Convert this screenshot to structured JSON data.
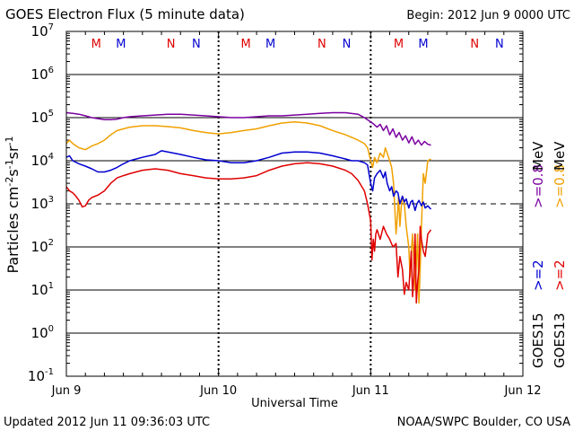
{
  "chart_data": {
    "type": "line",
    "title": "GOES Electron Flux (5 minute data)",
    "begin_label": "Begin: 2012 Jun 9 0000 UTC",
    "xlabel": "Universal Time",
    "ylabel": "Particles cm⁻²s⁻¹sr⁻¹",
    "ylabel_parts": {
      "base": "Particles cm",
      "e1": "-2",
      "mid1": "s",
      "e2": "-1",
      "mid2": "sr",
      "e3": "-1"
    },
    "x_unit": "hours since 2012 Jun 9 00:00 UTC",
    "xlim": [
      0,
      72
    ],
    "x_ticks": [
      {
        "h": 0,
        "label": "Jun 9"
      },
      {
        "h": 24,
        "label": "Jun 10"
      },
      {
        "h": 48,
        "label": "Jun 11"
      },
      {
        "h": 72,
        "label": "Jun 12"
      }
    ],
    "yscale": "log",
    "ylim_exp": [
      -1,
      7
    ],
    "y_ticks": [
      {
        "exp": 7,
        "base": "10",
        "sup": "7"
      },
      {
        "exp": 6,
        "base": "10",
        "sup": "6"
      },
      {
        "exp": 5,
        "base": "10",
        "sup": "5"
      },
      {
        "exp": 4,
        "base": "10",
        "sup": "4"
      },
      {
        "exp": 3,
        "base": "10",
        "sup": "3"
      },
      {
        "exp": 2,
        "base": "10",
        "sup": "2"
      },
      {
        "exp": 1,
        "base": "10",
        "sup": "1"
      },
      {
        "exp": 0,
        "base": "10",
        "sup": "0"
      },
      {
        "exp": -1,
        "base": "10",
        "sup": "-1"
      }
    ],
    "dashed_threshold_exp": 3,
    "markers": [
      {
        "h": 4.7,
        "label": "M",
        "color": "#e00000"
      },
      {
        "h": 8.6,
        "label": "M",
        "color": "#0000d0"
      },
      {
        "h": 16.5,
        "label": "N",
        "color": "#e00000"
      },
      {
        "h": 20.5,
        "label": "N",
        "color": "#0000d0"
      },
      {
        "h": 28.3,
        "label": "M",
        "color": "#e00000"
      },
      {
        "h": 32.2,
        "label": "M",
        "color": "#0000d0"
      },
      {
        "h": 40.3,
        "label": "N",
        "color": "#e00000"
      },
      {
        "h": 44.2,
        "label": "N",
        "color": "#0000d0"
      },
      {
        "h": 52.4,
        "label": "M",
        "color": "#e00000"
      },
      {
        "h": 56.3,
        "label": "M",
        "color": "#0000d0"
      },
      {
        "h": 64.4,
        "label": "N",
        "color": "#e00000"
      },
      {
        "h": 68.3,
        "label": "N",
        "color": "#0000d0"
      }
    ],
    "legend_placement": "right",
    "legend": [
      {
        "sat": "GOES15",
        "label": ">=2",
        "unit": "MeV",
        "color": "#0000d0",
        "label2": ">=0.8",
        "color2": "#7b00a0"
      },
      {
        "sat": "GOES13",
        "label": ">=2",
        "unit": "MeV",
        "color": "#e00000",
        "label2": ">=0.8",
        "color2": "#f0a000"
      }
    ],
    "series": [
      {
        "name": "GOES15 >=0.8 MeV",
        "color": "#7b00a0",
        "x": [
          0,
          1,
          2,
          3,
          4,
          5,
          6,
          7,
          8,
          9,
          10,
          12,
          14,
          16,
          18,
          20,
          22,
          24,
          26,
          28,
          30,
          32,
          34,
          36,
          38,
          40,
          42,
          44,
          46,
          47,
          48,
          48.5,
          49,
          49.5,
          50,
          50.5,
          51,
          51.5,
          52,
          52.5,
          53,
          53.5,
          54,
          54.5,
          55,
          55.5,
          56,
          56.5,
          57,
          57.5
        ],
        "y": [
          130000.0,
          125000.0,
          120000.0,
          110000.0,
          100000.0,
          95000.0,
          90000.0,
          90000.0,
          92000.0,
          100000.0,
          105000.0,
          110000.0,
          115000.0,
          120000.0,
          120000.0,
          115000.0,
          110000.0,
          105000.0,
          100000.0,
          100000.0,
          105000.0,
          110000.0,
          110000.0,
          115000.0,
          120000.0,
          125000.0,
          130000.0,
          130000.0,
          120000.0,
          100000.0,
          80000.0,
          70000.0,
          60000.0,
          70000.0,
          50000.0,
          65000.0,
          40000.0,
          55000.0,
          35000.0,
          45000.0,
          30000.0,
          38000.0,
          26000.0,
          36000.0,
          24000.0,
          30000.0,
          23000.0,
          28000.0,
          24000.0,
          23000.0
        ]
      },
      {
        "name": "GOES13 >=0.8 MeV",
        "color": "#f0a000",
        "x": [
          0,
          0.5,
          1,
          2,
          3,
          4,
          5,
          6,
          7,
          8,
          9,
          10,
          12,
          14,
          16,
          18,
          20,
          22,
          24,
          26,
          28,
          30,
          32,
          34,
          36,
          38,
          40,
          42,
          44,
          45,
          46,
          47,
          47.5,
          48,
          48.3,
          48.6,
          49,
          49.5,
          50,
          50.3,
          50.6,
          51,
          51.3,
          51.6,
          52,
          52.2,
          52.4,
          52.6,
          52.8,
          53,
          53.3,
          53.6,
          54,
          54.2,
          54.4,
          54.6,
          54.8,
          55,
          55.2,
          55.4,
          55.6,
          55.8,
          56,
          56.3,
          56.6,
          57,
          57.5
        ],
        "y": [
          25000.0,
          30000.0,
          25000.0,
          20000.0,
          18000.0,
          22000.0,
          25000.0,
          30000.0,
          40000.0,
          50000.0,
          55000.0,
          60000.0,
          65000.0,
          65000.0,
          62000.0,
          58000.0,
          50000.0,
          45000.0,
          42000.0,
          45000.0,
          50000.0,
          55000.0,
          65000.0,
          75000.0,
          80000.0,
          75000.0,
          65000.0,
          50000.0,
          40000.0,
          35000.0,
          30000.0,
          25000.0,
          20000.0,
          10000.0,
          7000.0,
          12000.0,
          9000.0,
          15000.0,
          12000.0,
          20000.0,
          15000.0,
          10000.0,
          7000.0,
          3000.0,
          200.0,
          500.0,
          1500.0,
          300.0,
          800.0,
          1500.0,
          1000.0,
          300.0,
          100.0,
          20,
          80,
          200,
          50,
          10,
          40,
          200,
          5,
          30,
          300.0,
          5000.0,
          3000.0,
          10000.0,
          11000.0
        ]
      },
      {
        "name": "GOES15 >=2 MeV",
        "color": "#0000d0",
        "x": [
          0,
          0.5,
          1,
          2,
          3,
          4,
          5,
          6,
          7,
          8,
          9,
          10,
          12,
          14,
          15,
          16,
          18,
          20,
          22,
          24,
          26,
          28,
          30,
          32,
          34,
          36,
          38,
          40,
          42,
          44,
          45,
          46,
          47,
          47.5,
          48,
          48.3,
          48.6,
          49,
          49.5,
          50,
          50.3,
          50.6,
          51,
          51.3,
          51.6,
          52,
          52.3,
          52.6,
          53,
          53.3,
          53.6,
          54,
          54.3,
          54.6,
          55,
          55.3,
          55.6,
          56,
          56.3,
          56.6,
          57,
          57.5
        ],
        "y": [
          12000.0,
          13000.0,
          10000.0,
          8500.0,
          7500.0,
          6500.0,
          5500.0,
          5500.0,
          6000.0,
          7000.0,
          8500.0,
          10000.0,
          12000.0,
          14000.0,
          17000.0,
          16000.0,
          14000.0,
          12000.0,
          10500.0,
          10000.0,
          9000.0,
          9000.0,
          10000.0,
          12000.0,
          15000.0,
          16000.0,
          16000.0,
          15000.0,
          13000.0,
          11000.0,
          10000.0,
          10000.0,
          9000.0,
          8000.0,
          3000.0,
          2000.0,
          4000.0,
          5000.0,
          6000.0,
          4000.0,
          5500.0,
          3000.0,
          2000.0,
          2500.0,
          1500.0,
          2000.0,
          1800.0,
          1000.0,
          1500.0,
          1100.0,
          1300.0,
          800.0,
          1100.0,
          1200.0,
          700.0,
          1000.0,
          1200.0,
          900.0,
          1100.0,
          800.0,
          900.0,
          750.0
        ]
      },
      {
        "name": "GOES13 >=2 MeV",
        "color": "#e00000",
        "x": [
          0,
          0.5,
          1,
          1.5,
          2,
          2.5,
          3,
          3.5,
          4,
          5,
          6,
          7,
          8,
          9,
          10,
          12,
          14,
          16,
          18,
          20,
          22,
          24,
          26,
          28,
          30,
          32,
          34,
          36,
          38,
          40,
          42,
          44,
          45,
          46,
          47,
          47.5,
          48,
          48.2,
          48.4,
          48.6,
          48.8,
          49,
          49.5,
          50,
          50.5,
          51,
          51.5,
          52,
          52.3,
          52.6,
          53,
          53.3,
          53.6,
          54,
          54.2,
          54.4,
          54.6,
          54.8,
          55,
          55.2,
          55.4,
          55.6,
          55.8,
          56,
          56.3,
          56.6,
          57,
          57.5
        ],
        "y": [
          2500.0,
          2000.0,
          1800.0,
          1500.0,
          1200.0,
          850.0,
          900.0,
          1200.0,
          1400.0,
          1600.0,
          2000.0,
          3000.0,
          4000.0,
          4500.0,
          5000.0,
          6000.0,
          6500.0,
          6000.0,
          5000.0,
          4500.0,
          4000.0,
          3800.0,
          3800.0,
          4000.0,
          4500.0,
          6000.0,
          7500.0,
          8500.0,
          9000.0,
          8500.0,
          7500.0,
          6000.0,
          5000.0,
          3500.0,
          2000.0,
          1000.0,
          400.0,
          50,
          150.0,
          80.0,
          200.0,
          250.0,
          150.0,
          300.0,
          200.0,
          150.0,
          100.0,
          120.0,
          20,
          60,
          30,
          8,
          15,
          10,
          30,
          80,
          7,
          20,
          200,
          5,
          15,
          30,
          300.0,
          150,
          80,
          60,
          200.0,
          250.0
        ]
      }
    ]
  },
  "footer": {
    "updated": "Updated 2012 Jun 11 09:36:03 UTC",
    "credit": "NOAA/SWPC Boulder, CO USA"
  }
}
